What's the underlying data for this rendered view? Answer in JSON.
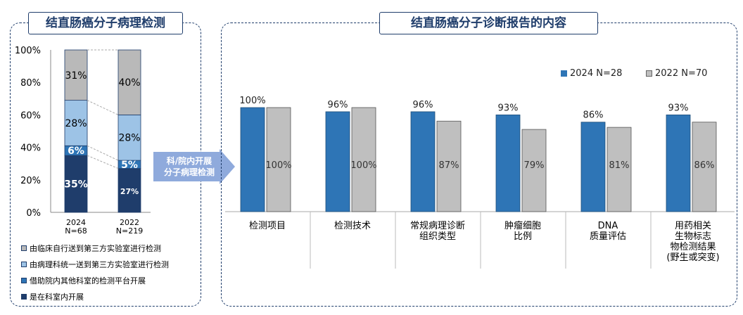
{
  "left_panel": {
    "title": "结直肠癌分子病理检测",
    "legend": [
      {
        "label": "由临床自行送到第三方实验室进行检测",
        "color": "#b9b9b9"
      },
      {
        "label": "由病理科统一送到第三方实验室进行检测",
        "color": "#9dc3e6"
      },
      {
        "label": "借助院内其他科室的检测平台开展",
        "color": "#2e75b6"
      },
      {
        "label": "是在科室内开展",
        "color": "#1f3d6b"
      }
    ]
  },
  "right_panel": {
    "title": "结直肠癌分子诊断报告的内容",
    "legend": [
      {
        "label": "2024 N=28",
        "color": "#2e75b6"
      },
      {
        "label": "2022 N=70",
        "color": "#bfbfbf"
      }
    ]
  },
  "arrow": {
    "line1": "科/院内开展",
    "line2": "分子病理检测",
    "color": "#8faadc"
  },
  "chart_data": [
    {
      "type": "bar",
      "stacked": true,
      "categories": [
        "2024\nN=68",
        "2022\nN=219"
      ],
      "series": [
        {
          "name": "是在科室内开展",
          "values": [
            35,
            27
          ],
          "labels": [
            "35%",
            "27%"
          ],
          "color": "#1f3d6b"
        },
        {
          "name": "借助院内其他科室的检测平台开展",
          "values": [
            6,
            5
          ],
          "labels": [
            "6%",
            "5%"
          ],
          "color": "#2e75b6"
        },
        {
          "name": "由病理科统一送到第三方实验室进行检测",
          "values": [
            28,
            28
          ],
          "labels": [
            "28%",
            "28%"
          ],
          "color": "#9dc3e6"
        },
        {
          "name": "由临床自行送到第三方实验室进行检测",
          "values": [
            31,
            40
          ],
          "labels": [
            "31%",
            "40%"
          ],
          "color": "#b9b9b9"
        }
      ],
      "ylim": [
        0,
        100
      ],
      "yticks": [
        "0%",
        "20%",
        "40%",
        "60%",
        "80%",
        "100%"
      ],
      "grid": false
    },
    {
      "type": "bar",
      "categories": [
        "检测项目",
        "检测技术",
        "常规病理诊断\n组织类型",
        "肿瘤细胞\n比例",
        "DNA\n质量评估",
        "用药相关\n生物标志\n物检测结果\n(野生或突变)"
      ],
      "series": [
        {
          "name": "2024 N=28",
          "values": [
            100,
            96,
            96,
            93,
            86,
            93
          ],
          "labels": [
            "100%",
            "96%",
            "96%",
            "93%",
            "86%",
            "93%"
          ],
          "color": "#2e75b6"
        },
        {
          "name": "2022 N=70",
          "values": [
            100,
            100,
            87,
            79,
            81,
            86
          ],
          "labels": [
            "100%",
            "100%",
            "87%",
            "79%",
            "81%",
            "86%"
          ],
          "color": "#bfbfbf"
        }
      ],
      "legend": "top-right",
      "grid": false
    }
  ]
}
